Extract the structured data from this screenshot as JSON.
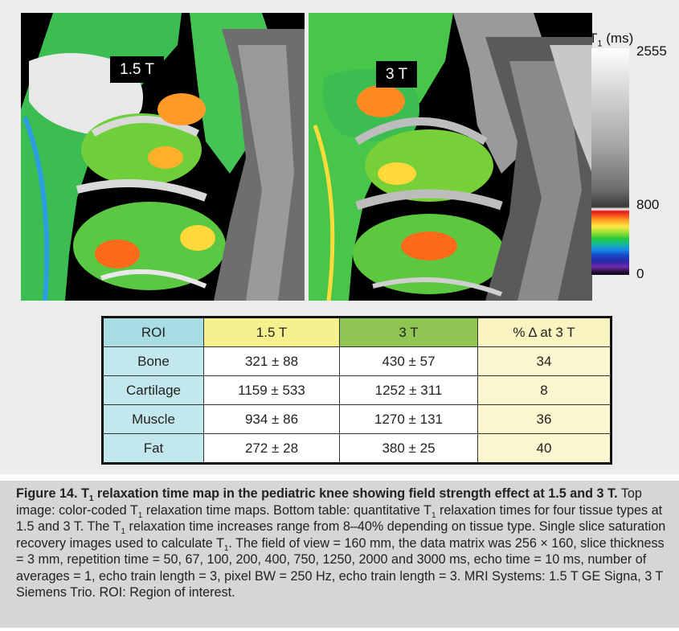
{
  "figure": {
    "left_label": "1.5 T",
    "right_label": "3 T",
    "scale": {
      "title": "T",
      "title_sub": "1",
      "title_unit": "(ms)",
      "ticks": [
        "2555",
        "800",
        "0"
      ]
    }
  },
  "table": {
    "headers": [
      "ROI",
      "1.5 T",
      "3 T",
      "% Δ at 3 T"
    ],
    "rows": [
      [
        "Bone",
        "321 ± 88",
        "430 ± 57",
        "34"
      ],
      [
        "Cartilage",
        "1159 ± 533",
        "1252 ± 311",
        "8"
      ],
      [
        "Muscle",
        "934 ± 86",
        "1270 ± 131",
        "36"
      ],
      [
        "Fat",
        "272 ± 28",
        "380 ± 25",
        "40"
      ]
    ]
  },
  "caption": {
    "title_a": "Figure 14. T",
    "title_sub": "1",
    "title_b": " relaxation time map in the pediatric knee showing field strength effect at 1.5 and 3 T.",
    "t1": " Top image: color-coded T",
    "s1": "1",
    "t2": " relaxation time maps. Bottom table: quantitative T",
    "s2": "1",
    "t3": " relaxation times for four tissue types at 1.5 and 3 T. The T",
    "s3": "1",
    "t4": " relaxation time increases range from 8–40% depending on tissue type. Single slice saturation recovery images used to calculate T",
    "s4": "1",
    "t5": ". The field of view = 160 mm, the data matrix was 256 × 160, slice thickness = 3 mm, repetition time = 50, 67, 100, 200, 400, 750, 1250, 2000 and 3000 ms, echo time = 10 ms, number of averages = 1, echo train length = 3, pixel BW = 250 Hz, echo train length = 3. MRI Systems: 1.5 T GE Signa, 3 T Siemens Trio. ROI: Region of interest."
  }
}
